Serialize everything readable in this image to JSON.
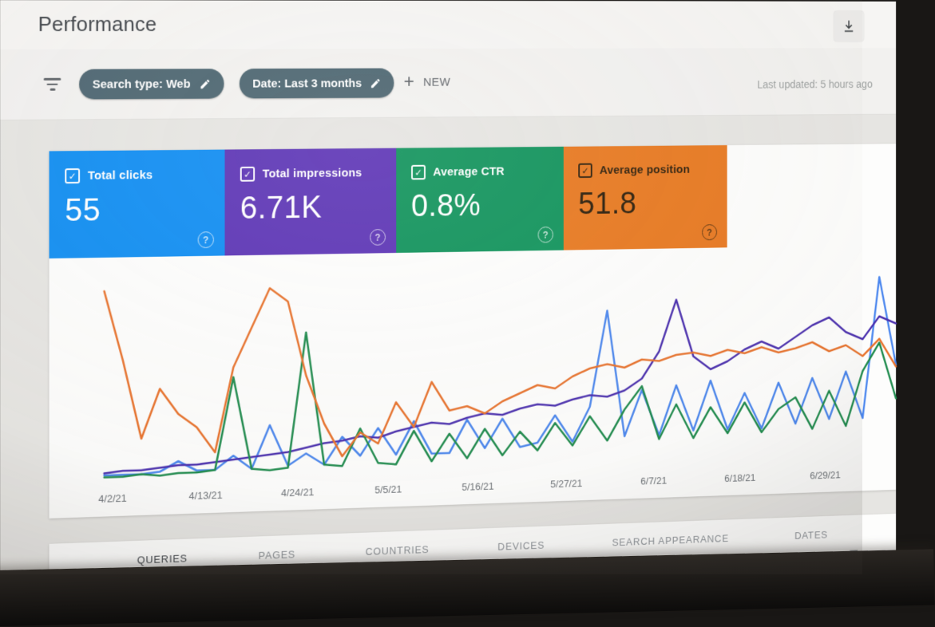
{
  "header": {
    "title": "Performance"
  },
  "filters": {
    "chips": [
      {
        "label": "Search type: Web"
      },
      {
        "label": "Date: Last 3 months"
      }
    ],
    "new_button": "NEW",
    "last_updated": "Last updated: 5 hours ago"
  },
  "icons": {
    "plus": "+",
    "help": "?",
    "check": "✓"
  },
  "metric_cards": [
    {
      "label": "Total clicks",
      "value": "55",
      "bg": "#0f8df2",
      "fg": "#ffffff"
    },
    {
      "label": "Total impressions",
      "value": "6.71K",
      "bg": "#5c34b5",
      "fg": "#ffffff"
    },
    {
      "label": "Average CTR",
      "value": "0.8%",
      "bg": "#10935b",
      "fg": "#ffffff"
    },
    {
      "label": "Average position",
      "value": "51.8",
      "bg": "#e8781f",
      "fg": "#2a1c08"
    }
  ],
  "chart_data": {
    "type": "line",
    "x_tick_labels": [
      "4/2/21",
      "4/13/21",
      "4/24/21",
      "5/5/21",
      "5/16/21",
      "5/27/21",
      "6/7/21",
      "6/18/21",
      "6/29/21"
    ],
    "x_range": [
      "4/1/21",
      "6/30/21"
    ],
    "grid": false,
    "legend_position": "none",
    "y_units": "percent_of_plot_height",
    "series": [
      {
        "name": "Total clicks",
        "color": "#4a86ee",
        "values": [
          2,
          2,
          2,
          3,
          8,
          3,
          3,
          10,
          3,
          25,
          4,
          10,
          4,
          18,
          8,
          22,
          8,
          25,
          8,
          8,
          25,
          10,
          25,
          10,
          12,
          26,
          12,
          30,
          80,
          14,
          38,
          14,
          40,
          16,
          42,
          16,
          35,
          16,
          40,
          18,
          42,
          20,
          45,
          20,
          95,
          48
        ]
      },
      {
        "name": "Total impressions",
        "color": "#4a2fae",
        "values": [
          3,
          4,
          4,
          5,
          6,
          6,
          7,
          8,
          9,
          10,
          11,
          13,
          15,
          16,
          18,
          17,
          20,
          22,
          24,
          23,
          26,
          28,
          27,
          30,
          32,
          31,
          34,
          36,
          35,
          38,
          44,
          58,
          85,
          55,
          48,
          52,
          58,
          62,
          58,
          64,
          70,
          74,
          66,
          62,
          74,
          70
        ]
      },
      {
        "name": "Average CTR",
        "color": "#1f8b4d",
        "values": [
          1,
          1,
          2,
          1,
          2,
          2,
          3,
          50,
          3,
          2,
          3,
          72,
          4,
          3,
          22,
          4,
          3,
          20,
          4,
          18,
          5,
          20,
          6,
          18,
          8,
          22,
          10,
          25,
          12,
          28,
          40,
          12,
          30,
          12,
          28,
          14,
          30,
          14,
          26,
          32,
          15,
          35,
          16,
          45,
          60,
          30
        ]
      },
      {
        "name": "Average position",
        "color": "#e8722c",
        "values": [
          95,
          60,
          20,
          45,
          32,
          25,
          12,
          55,
          75,
          95,
          88,
          50,
          25,
          8,
          20,
          14,
          35,
          22,
          45,
          30,
          32,
          28,
          34,
          38,
          42,
          40,
          46,
          50,
          52,
          50,
          54,
          53,
          56,
          57,
          55,
          58,
          56,
          59,
          56,
          58,
          61,
          56,
          59,
          53,
          62,
          47
        ]
      }
    ]
  },
  "tabs": {
    "items": [
      "QUERIES",
      "PAGES",
      "COUNTRIES",
      "DEVICES",
      "SEARCH APPEARANCE",
      "DATES"
    ],
    "active": "QUERIES"
  }
}
